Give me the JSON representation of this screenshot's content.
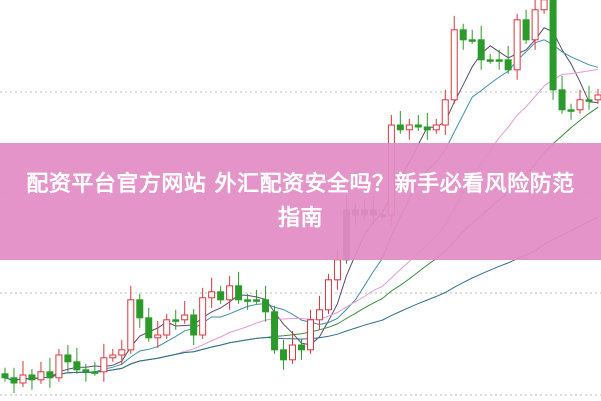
{
  "banner": {
    "title": "配资平台官方网站 外汇配资安全吗？新手必看风险防范指南"
  },
  "chart_data": {
    "type": "candlestick",
    "grid": "horizontal-dotted",
    "ylim": [
      0,
      100.25
    ],
    "closes": [
      5.8,
      4.5,
      6.5,
      5.3,
      7.3,
      5.8,
      11.5,
      9.8,
      7.8,
      7.3,
      7.3,
      10.8,
      11.5,
      12.8,
      25.3,
      20.8,
      15.8,
      16.5,
      20.3,
      20.3,
      21.5,
      16.5,
      25.8,
      27.3,
      25.3,
      28.8,
      25.3,
      25.3,
      25.3,
      22.3,
      12.8,
      10.3,
      14,
      12.8,
      20.3,
      22.8,
      30.3,
      35.3,
      47.8,
      46.5,
      47.8,
      46.5,
      46.5,
      69,
      67.8,
      69,
      68.5,
      67.8,
      69,
      75.3,
      92.8,
      90.3,
      90.3,
      85.3,
      85.3,
      85.3,
      82.8,
      95.3,
      90.3,
      97.8,
      100.3,
      77.8,
      72.8,
      72.8,
      75.3,
      75.3,
      76.5
    ],
    "moving_averages": [
      {
        "period": 5,
        "color": "#5a4a6a"
      },
      {
        "period": 10,
        "color": "#3f8fa8"
      },
      {
        "period": 20,
        "color": "#e39ad8"
      },
      {
        "period": 30,
        "color": "#3a8a3a"
      },
      {
        "period": 60,
        "color": "#2f6f8f"
      }
    ],
    "colors": {
      "up": "#d9363e",
      "down": "#2a9a2a",
      "flat": "#666666",
      "grid": "#bbbbbb"
    }
  }
}
